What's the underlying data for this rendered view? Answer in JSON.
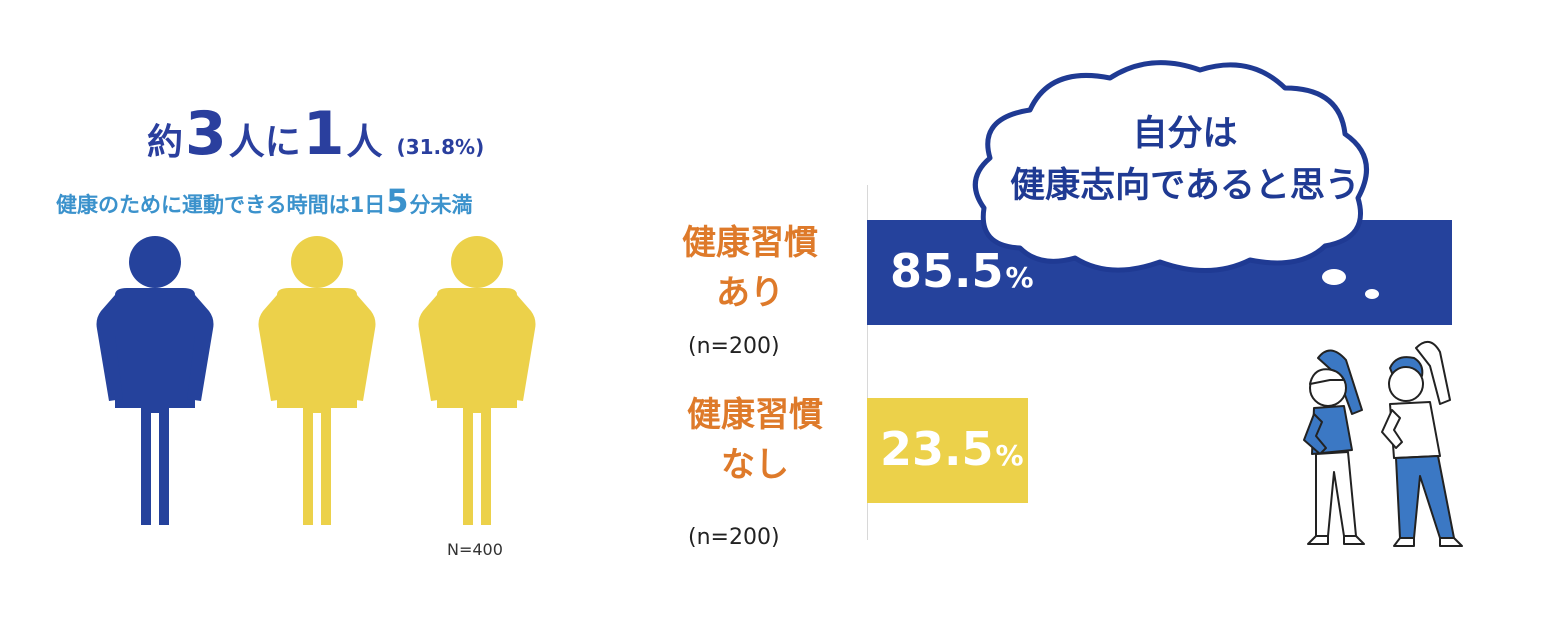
{
  "left": {
    "headline_pre": "約",
    "headline_num1": "3",
    "headline_mid": "人に",
    "headline_num2": "1",
    "headline_post": "人",
    "headline_pct": "(31.8%)",
    "sub_pre": "健康のために運動できる時間は1日",
    "sub_num": "5",
    "sub_post": "分未満",
    "n_total": "N=400",
    "people": [
      {
        "color": "#25429c"
      },
      {
        "color": "#ecd14a"
      },
      {
        "color": "#ecd14a"
      }
    ]
  },
  "thought_bubble": {
    "line1": "自分は",
    "line2": "健康志向であると思う"
  },
  "colors": {
    "navy": "#25429c",
    "yellow": "#ecd14a",
    "orange": "#de7a2a",
    "light_blue": "#3b92cc"
  },
  "chart_data": {
    "type": "bar",
    "orientation": "horizontal",
    "categories": [
      "健康習慣あり",
      "健康習慣なし"
    ],
    "category_lines": [
      [
        "健康習慣",
        "あり"
      ],
      [
        "健康習慣",
        "なし"
      ]
    ],
    "sample_sizes": [
      "(n=200)",
      "(n=200)"
    ],
    "values": [
      85.5,
      23.5
    ],
    "value_labels": [
      "85.5",
      "23.5"
    ],
    "unit": "%",
    "bar_colors": [
      "#25429c",
      "#ecd14a"
    ],
    "xlim": [
      0,
      100
    ],
    "title": "自分は健康志向であると思う",
    "grid": false
  }
}
